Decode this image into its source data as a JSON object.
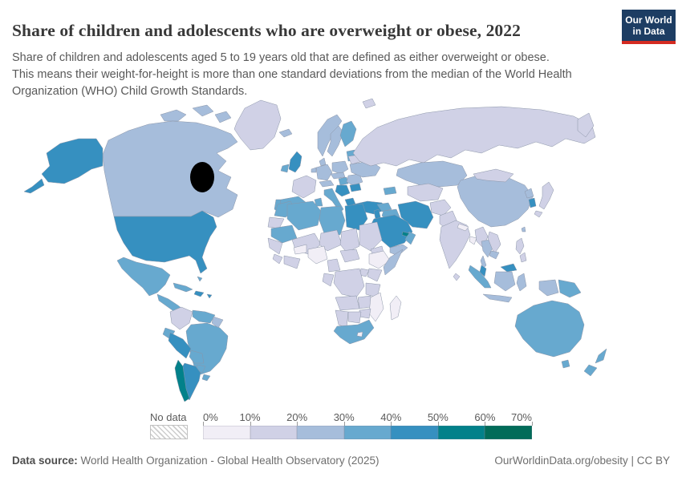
{
  "header": {
    "title": "Share of children and adolescents who are overweight or obese, 2022",
    "logo": {
      "line1": "Our World",
      "line2": "in Data",
      "bg_color": "#1d3d63",
      "bar_color": "#d42b21"
    }
  },
  "subtitle": {
    "lines": [
      "Share of children and adolescents aged 5 to 19 years old that are defined as either overweight or obese.",
      "This means their weight-for-height is more than one standard deviations from the median of the World Health Organization (WHO) Child Growth Standards."
    ]
  },
  "legend": {
    "no_data_label": "No data",
    "tick_labels": [
      "0%",
      "10%",
      "20%",
      "30%",
      "40%",
      "50%",
      "60%",
      "70%"
    ],
    "band_colors": [
      "#f1eef6",
      "#d0d1e6",
      "#a6bddb",
      "#67a9cf",
      "#3690c0",
      "#02818a",
      "#016c59"
    ],
    "hatch_color": "#cdcdcd"
  },
  "footer": {
    "source_label": "Data source:",
    "source_value": " World Health Organization - Global Health Observatory (2025)",
    "rights": "OurWorldinData.org/obesity | CC BY"
  },
  "chart_data": {
    "type": "heatmap",
    "subtype": "world_choropleth_map",
    "title": "Share of children and adolescents who are overweight or obese, 2022",
    "year": 2022,
    "unit": "%",
    "legend_position": "bottom",
    "bins": [
      {
        "range": "0-10%",
        "color": "#f1eef6"
      },
      {
        "range": "10-20%",
        "color": "#d0d1e6"
      },
      {
        "range": "20-30%",
        "color": "#a6bddb"
      },
      {
        "range": "30-40%",
        "color": "#67a9cf"
      },
      {
        "range": "40-50%",
        "color": "#3690c0"
      },
      {
        "range": "50-60%",
        "color": "#02818a"
      },
      {
        "range": "60-70%",
        "color": "#016c59"
      }
    ],
    "no_data": {
      "label": "No data",
      "style": "diagonal-hatch"
    },
    "note": "Country values estimated from map fill colors; value is the legend band index (0 = 0-10% ... 6 = 60-70%).",
    "regions": {
      "nigeria": 0,
      "burkina_faso": 0,
      "ethiopia": 0,
      "nepal": 0,
      "bangladesh": 0,
      "madagascar": 0,
      "mozambique": 0,
      "lesotho": 0,
      "greenland": 1,
      "svalbard": 1,
      "russia": 1,
      "russia_east": 1,
      "belarus": 1,
      "france": 1,
      "mongolia": 1,
      "japan": 1,
      "colombia": 1,
      "india": 1,
      "sri_lanka": 1,
      "myanmar": 1,
      "vietnam_laos": 1,
      "philippines": 1,
      "afghanistan": 1,
      "pakistan": 1,
      "central_asia": 1,
      "western_sahara": 1,
      "mali": 1,
      "niger": 1,
      "chad": 1,
      "sudan": 1,
      "eritrea_djibouti": 1,
      "senegal_guinea": 1,
      "sierra_liberia": 1,
      "ivory_ghana": 1,
      "cameroon": 1,
      "central_african_republic": 1,
      "kenya": 1,
      "uganda": 1,
      "dr_congo": 1,
      "gabon_congo": 1,
      "tanzania": 1,
      "angola": 1,
      "zambia": 1,
      "zimbabwe": 1,
      "botswana": 1,
      "namibia": 1,
      "canada": 2,
      "arctic_islands": 2,
      "iceland": 2,
      "norway": 2,
      "sweden": 2,
      "denmark": 2,
      "germany": 2,
      "benelux": 2,
      "switzerland_austria": 2,
      "poland": 2,
      "czech_slovakia": 2,
      "romania": 2,
      "ukraine": 2,
      "kazakhstan": 2,
      "china": 2,
      "north_korea": 2,
      "taiwan": 2,
      "thailand": 2,
      "cambodia": 2,
      "indonesia_borneo": 2,
      "sulawesi": 2,
      "java": 2,
      "west_papua": 2,
      "somalia": 2,
      "yemen": 2,
      "guyana_suriname": 2,
      "mexico": 3,
      "central_america": 3,
      "cuba": 3,
      "bahamas": 3,
      "venezuela": 3,
      "ecuador": 3,
      "brazil": 3,
      "bolivia": 3,
      "paraguay": 3,
      "uruguay": 3,
      "ireland": 3,
      "finland": 3,
      "spain": 3,
      "portugal": 3,
      "italy": 3,
      "hungary": 3,
      "baltic_states": 3,
      "caucasus": 3,
      "morocco": 3,
      "tunisia": 3,
      "algeria": 3,
      "libya": 3,
      "mauritania": 3,
      "syria": 3,
      "iraq": 3,
      "oman": 3,
      "south_africa": 3,
      "sumatra": 3,
      "papua_new_guinea": 3,
      "australia": 3,
      "tasmania": 3,
      "new_zealand": 3,
      "alaska": 4,
      "usa": 4,
      "hispaniola": 4,
      "puerto_rico": 4,
      "peru": 4,
      "argentina": 4,
      "uk": 4,
      "greece": 4,
      "bulgaria": 4,
      "balkans": 4,
      "turkey": 4,
      "israel_jordan": 4,
      "egypt": 4,
      "saudi_arabia": 4,
      "iran": 4,
      "malaysia_peninsula": 4,
      "malaysia_borneo": 4,
      "south_korea": 4,
      "chile": 5,
      "uae_qatar": 5
    }
  }
}
